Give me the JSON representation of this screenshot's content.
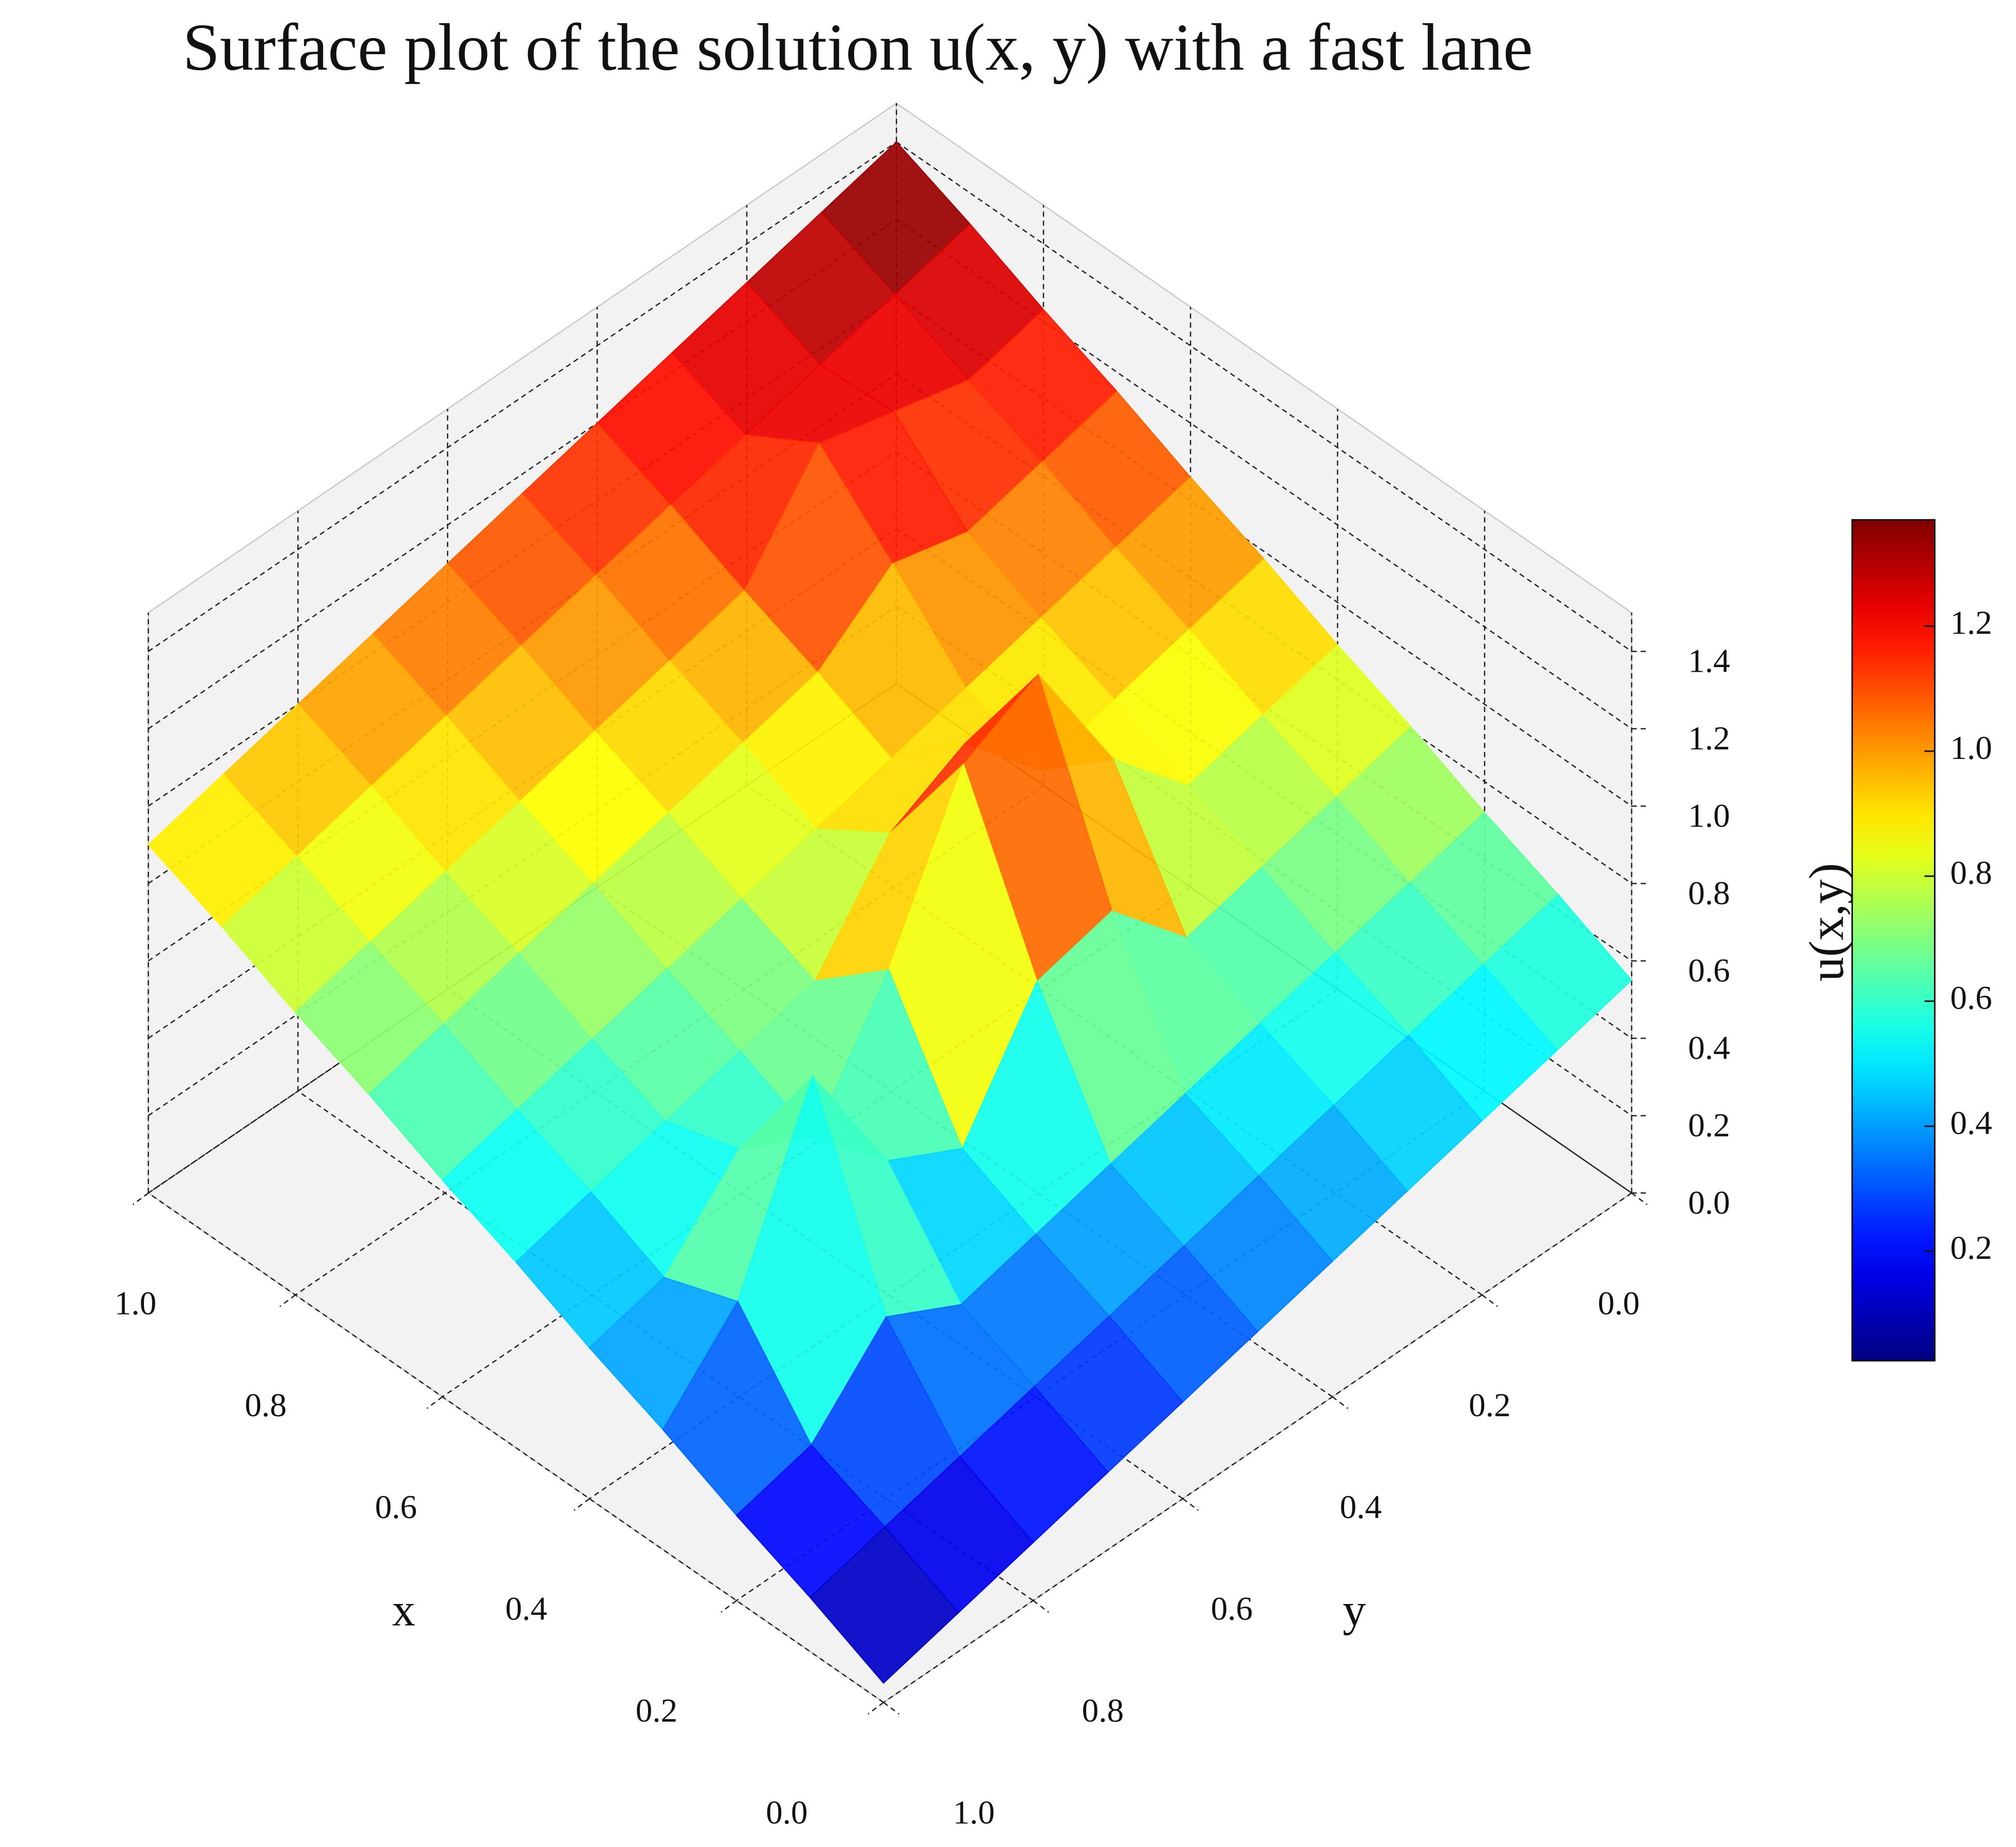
{
  "chart_data": {
    "type": "surface3d",
    "title": "Surface plot of the solution u(x, y) with a fast lane",
    "xlabel": "x",
    "ylabel": "y",
    "zlabel": "u(x,y)",
    "colormap": "jet",
    "clim": [
      0.025,
      1.37
    ],
    "x": [
      0,
      0.1,
      0.2,
      0.3,
      0.4,
      0.5,
      0.6,
      0.7,
      0.8,
      0.9,
      1
    ],
    "y": [
      0,
      0.1,
      0.2,
      0.3,
      0.4,
      0.5,
      0.6,
      0.7,
      0.8,
      0.9,
      1
    ],
    "z": [
      [
        0.55,
        0.5,
        0.45,
        0.4,
        0.35,
        0.3,
        0.25,
        0.2,
        0.15,
        0.1,
        0.05
      ],
      [
        0.64,
        0.59,
        0.54,
        0.49,
        0.44,
        0.39,
        0.34,
        0.29,
        0.24,
        0.19,
        0.14
      ],
      [
        0.72,
        0.67,
        0.62,
        0.57,
        0.52,
        0.47,
        0.42,
        0.37,
        0.47,
        0.27,
        0.22
      ],
      [
        0.81,
        0.76,
        0.71,
        0.66,
        0.86,
        0.81,
        0.51,
        0.61,
        0.96,
        0.51,
        0.31
      ],
      [
        0.89,
        0.84,
        0.79,
        0.99,
        1.34,
        1.24,
        0.84,
        0.54,
        0.64,
        0.44,
        0.39
      ],
      [
        0.98,
        0.93,
        0.88,
        0.83,
        1.03,
        0.93,
        0.68,
        0.63,
        0.58,
        0.53,
        0.48
      ],
      [
        1.06,
        1.01,
        0.96,
        0.91,
        0.86,
        0.81,
        0.76,
        0.71,
        0.66,
        0.61,
        0.56
      ],
      [
        1.15,
        1.1,
        1.05,
        1.1,
        0.95,
        0.9,
        0.85,
        0.8,
        0.75,
        0.7,
        0.65
      ],
      [
        1.23,
        1.18,
        1.23,
        1.28,
        1.03,
        0.98,
        0.93,
        0.88,
        0.83,
        0.78,
        0.73
      ],
      [
        1.32,
        1.27,
        1.22,
        1.17,
        1.12,
        1.07,
        1.02,
        0.97,
        0.92,
        0.87,
        0.82
      ],
      [
        1.4,
        1.35,
        1.3,
        1.25,
        1.2,
        1.15,
        1.1,
        1.05,
        1.0,
        0.95,
        0.9
      ]
    ],
    "xlim": [
      0,
      1
    ],
    "ylim": [
      0,
      1
    ],
    "zlim": [
      0,
      1.5
    ],
    "xticks": [
      {
        "value": 0,
        "label": "0.0"
      },
      0.2,
      0.4,
      0.6,
      0.8,
      {
        "value": 1,
        "label": "1.0"
      }
    ],
    "yticks": [
      {
        "value": 0,
        "label": "0.0"
      },
      0.2,
      0.4,
      0.6,
      0.8,
      {
        "value": 1,
        "label": "1.0"
      }
    ],
    "zticks": [
      {
        "value": 0,
        "label": "0.0"
      },
      0.2,
      0.4,
      0.6,
      0.8,
      {
        "value": 1,
        "label": "1.0"
      },
      1.2,
      1.4
    ],
    "colorbar_ticks": [
      0.2,
      0.4,
      0.6,
      0.8,
      {
        "value": 1,
        "label": "1.0"
      },
      1.2
    ],
    "grid": true
  }
}
